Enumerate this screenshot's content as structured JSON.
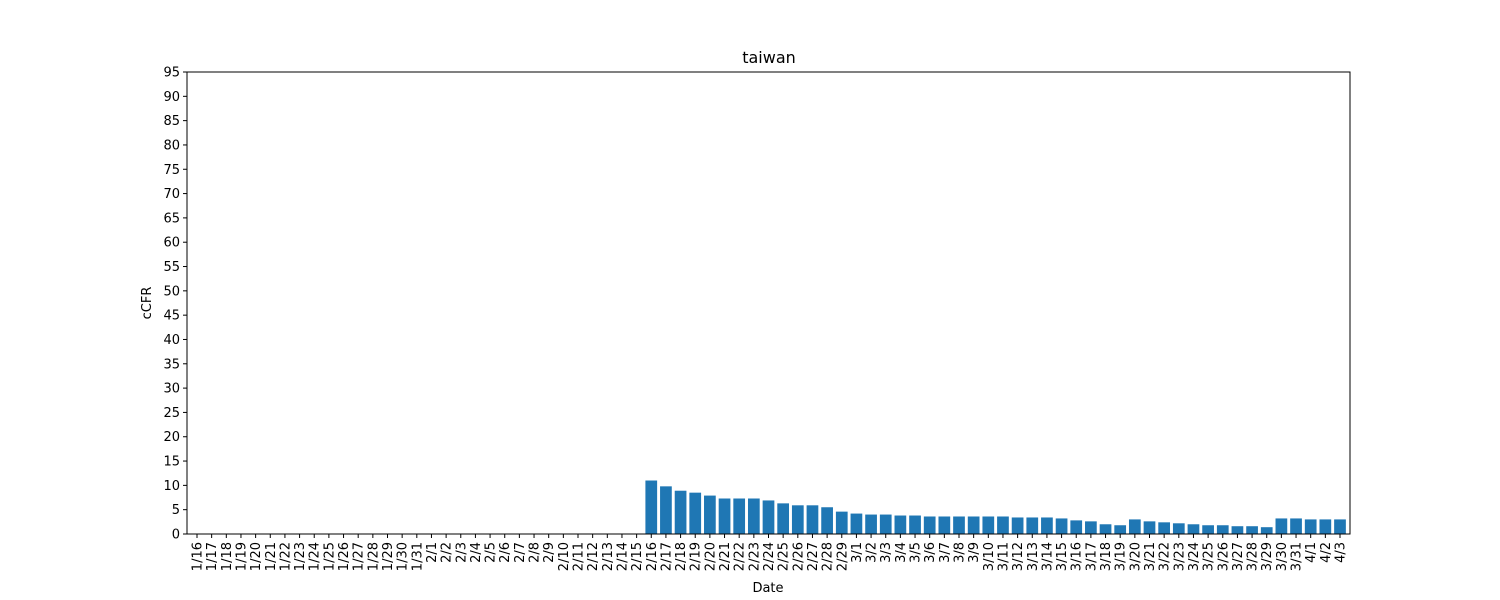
{
  "chart_data": {
    "type": "bar",
    "title": "taiwan",
    "xlabel": "Date",
    "ylabel": "cCFR",
    "ylim": [
      0,
      95
    ],
    "yticks": [
      0,
      5,
      10,
      15,
      20,
      25,
      30,
      35,
      40,
      45,
      50,
      55,
      60,
      65,
      70,
      75,
      80,
      85,
      90,
      95
    ],
    "grid": false,
    "bar_color": "#1f77b4",
    "categories": [
      "1/16",
      "1/17",
      "1/18",
      "1/19",
      "1/20",
      "1/21",
      "1/22",
      "1/23",
      "1/24",
      "1/25",
      "1/26",
      "1/27",
      "1/28",
      "1/29",
      "1/30",
      "1/31",
      "2/1",
      "2/2",
      "2/3",
      "2/4",
      "2/5",
      "2/6",
      "2/7",
      "2/8",
      "2/9",
      "2/10",
      "2/11",
      "2/12",
      "2/13",
      "2/14",
      "2/15",
      "2/16",
      "2/17",
      "2/18",
      "2/19",
      "2/20",
      "2/21",
      "2/22",
      "2/23",
      "2/24",
      "2/25",
      "2/26",
      "2/27",
      "2/28",
      "2/29",
      "3/1",
      "3/2",
      "3/3",
      "3/4",
      "3/5",
      "3/6",
      "3/7",
      "3/8",
      "3/9",
      "3/10",
      "3/11",
      "3/12",
      "3/13",
      "3/14",
      "3/15",
      "3/16",
      "3/17",
      "3/18",
      "3/19",
      "3/20",
      "3/21",
      "3/22",
      "3/23",
      "3/24",
      "3/25",
      "3/26",
      "3/27",
      "3/28",
      "3/29",
      "3/30",
      "3/31",
      "4/1",
      "4/2",
      "4/3"
    ],
    "values": [
      0,
      0,
      0,
      0,
      0,
      0,
      0,
      0,
      0,
      0,
      0,
      0,
      0,
      0,
      0,
      0,
      0,
      0,
      0,
      0,
      0,
      0,
      0,
      0,
      0,
      0,
      0,
      0,
      0,
      0,
      0,
      11.0,
      9.8,
      8.9,
      8.5,
      7.9,
      7.3,
      7.3,
      7.3,
      6.9,
      6.3,
      5.9,
      5.9,
      5.5,
      4.6,
      4.2,
      4.0,
      4.0,
      3.8,
      3.8,
      3.6,
      3.6,
      3.6,
      3.6,
      3.6,
      3.6,
      3.4,
      3.4,
      3.4,
      3.2,
      2.8,
      2.6,
      2.0,
      1.8,
      3.0,
      2.6,
      2.4,
      2.2,
      2.0,
      1.8,
      1.8,
      1.6,
      1.6,
      1.4,
      3.2,
      3.2,
      3.0,
      3.0,
      3.0
    ]
  }
}
